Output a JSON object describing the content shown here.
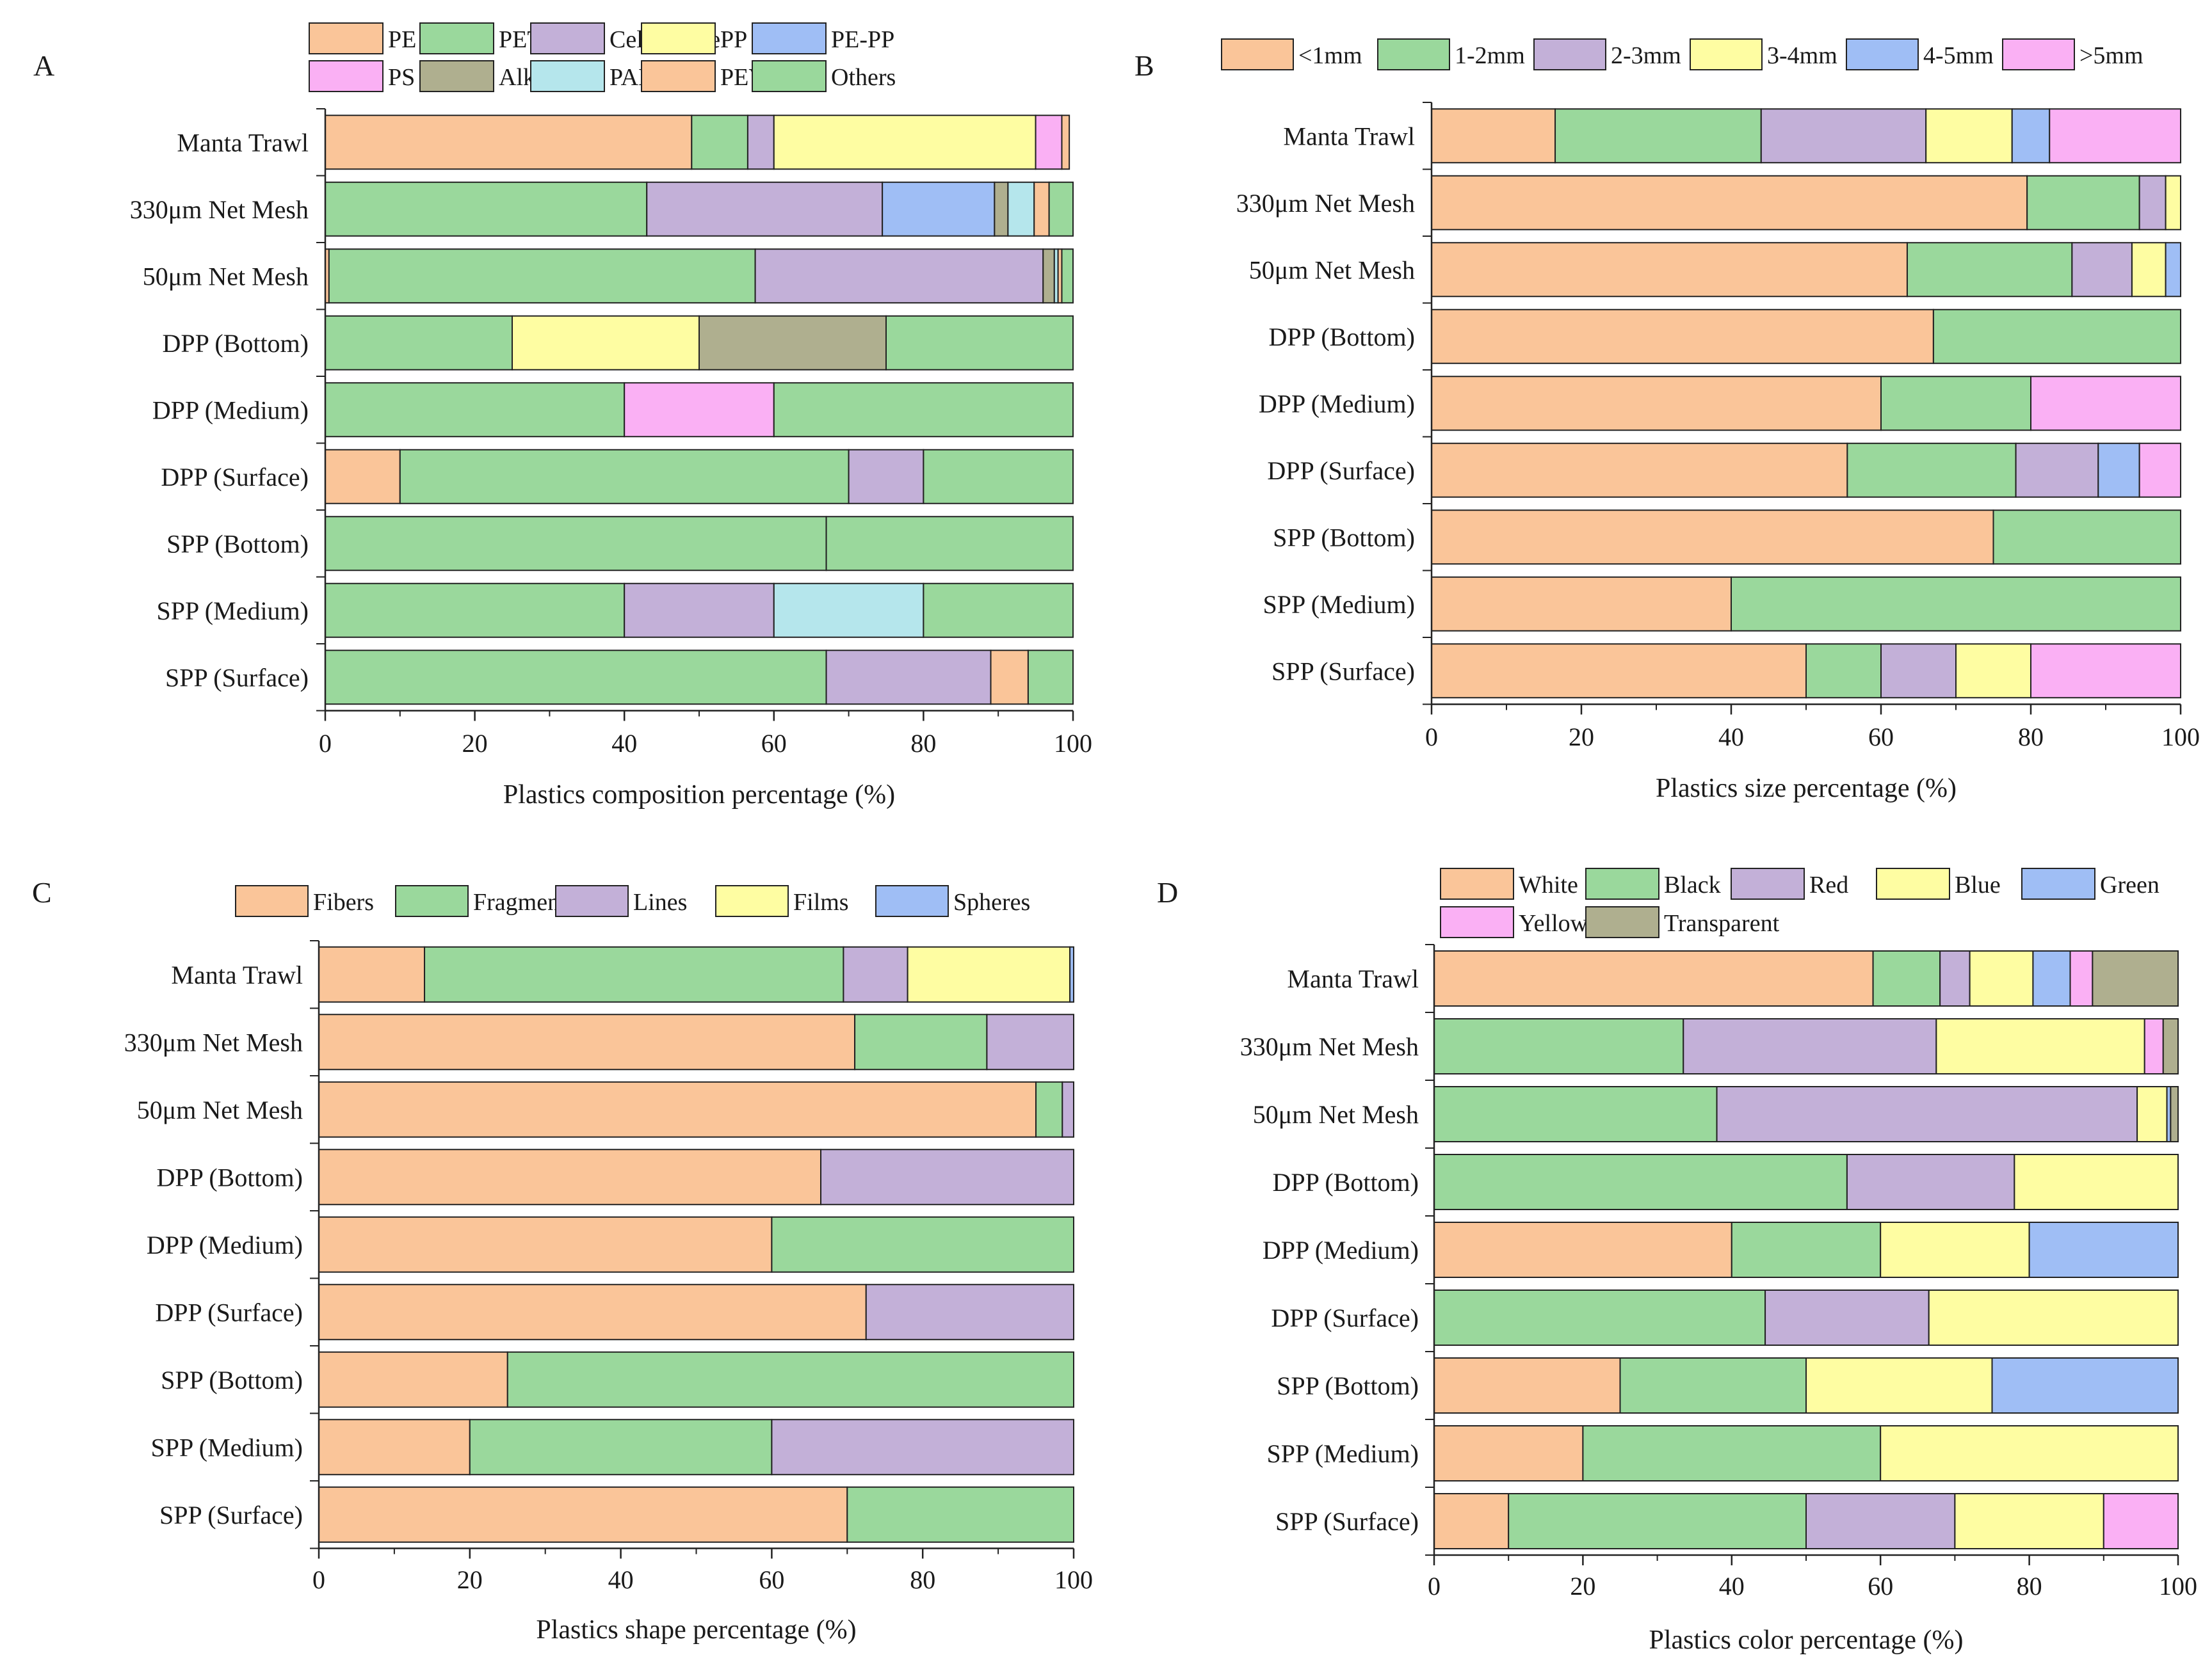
{
  "figure": {
    "panel_letters": [
      "A",
      "B",
      "C",
      "D"
    ]
  },
  "colors": {
    "orange": "#FAC599",
    "green": "#9AD89C",
    "purple": "#C3B0D8",
    "yellow": "#FEFDA2",
    "blue": "#9FBEF5",
    "pink": "#FAB0F4",
    "olive": "#AFAF8F",
    "cyan": "#B5E6EC"
  },
  "chart_data": [
    {
      "type": "bar",
      "orientation": "horizontal",
      "stacked": true,
      "panel": "A",
      "xlabel": "Plastics composition percentage (%)",
      "xlim": [
        0,
        100
      ],
      "xticks": [
        "0",
        "20",
        "40",
        "60",
        "80",
        "100"
      ],
      "categories": [
        "Manta Trawl",
        "330μm Net Mesh",
        "50μm Net Mesh",
        "DPP (Bottom)",
        "DPP (Medium)",
        "DPP (Surface)",
        "SPP (Bottom)",
        "SPP (Medium)",
        "SPP (Surface)"
      ],
      "legend_rows": [
        5,
        5
      ],
      "series": [
        {
          "name": "PE",
          "color": "orange",
          "values": [
            49,
            0,
            0.5,
            0,
            0,
            10,
            0,
            0,
            0
          ]
        },
        {
          "name": "PET",
          "color": "green",
          "values": [
            7.5,
            43,
            57,
            25,
            40,
            60,
            67,
            40,
            67
          ]
        },
        {
          "name": "Cellophane",
          "color": "purple",
          "values": [
            3.5,
            31.5,
            38.5,
            0,
            0,
            10,
            0,
            20,
            22
          ]
        },
        {
          "name": "PP",
          "color": "yellow",
          "values": [
            35,
            0,
            0,
            25,
            0,
            0,
            0,
            0,
            0
          ]
        },
        {
          "name": "PE-PP",
          "color": "blue",
          "values": [
            0,
            15,
            0,
            0,
            0,
            0,
            0,
            0,
            0
          ]
        },
        {
          "name": "PS",
          "color": "pink",
          "values": [
            3.5,
            0,
            0,
            0,
            20,
            0,
            0,
            0,
            0
          ]
        },
        {
          "name": "Alkyd",
          "color": "olive",
          "values": [
            0,
            1.8,
            1.5,
            25,
            0,
            0,
            0,
            0,
            0
          ]
        },
        {
          "name": "PAN-AA",
          "color": "cyan",
          "values": [
            0,
            3.5,
            0.5,
            0,
            0,
            0,
            0,
            20,
            0
          ]
        },
        {
          "name": "PEVA",
          "color": "orange",
          "values": [
            1,
            2,
            0.5,
            0,
            0,
            0,
            0,
            0,
            5
          ]
        },
        {
          "name": "Others",
          "color": "green",
          "values": [
            0,
            3.2,
            1.5,
            25,
            40,
            20,
            33,
            20,
            6
          ]
        }
      ]
    },
    {
      "type": "bar",
      "orientation": "horizontal",
      "stacked": true,
      "panel": "B",
      "xlabel": "Plastics size percentage (%)",
      "xlim": [
        0,
        100
      ],
      "xticks": [
        "0",
        "20",
        "40",
        "60",
        "80",
        "100"
      ],
      "categories": [
        "Manta Trawl",
        "330μm Net Mesh",
        "50μm Net Mesh",
        "DPP (Bottom)",
        "DPP (Medium)",
        "DPP (Surface)",
        "SPP (Bottom)",
        "SPP (Medium)",
        "SPP (Surface)"
      ],
      "legend_rows": [
        6
      ],
      "series": [
        {
          "name": "<1mm",
          "color": "orange",
          "values": [
            16.5,
            79.5,
            63.5,
            67,
            60,
            55.5,
            75,
            40,
            50
          ]
        },
        {
          "name": "1-2mm",
          "color": "green",
          "values": [
            27.5,
            15,
            22,
            33,
            20,
            22.5,
            25,
            60,
            10
          ]
        },
        {
          "name": "2-3mm",
          "color": "purple",
          "values": [
            22,
            3.5,
            8,
            0,
            0,
            11,
            0,
            0,
            10
          ]
        },
        {
          "name": "3-4mm",
          "color": "yellow",
          "values": [
            11.5,
            2,
            4.5,
            0,
            0,
            0,
            0,
            0,
            10
          ]
        },
        {
          "name": "4-5mm",
          "color": "blue",
          "values": [
            5,
            0,
            2,
            0,
            0,
            5.5,
            0,
            0,
            0
          ]
        },
        {
          "name": ">5mm",
          "color": "pink",
          "values": [
            17.5,
            0,
            0,
            0,
            20,
            5.5,
            0,
            0,
            20
          ]
        }
      ]
    },
    {
      "type": "bar",
      "orientation": "horizontal",
      "stacked": true,
      "panel": "C",
      "xlabel": "Plastics shape percentage (%)",
      "xlim": [
        0,
        100
      ],
      "xticks": [
        "0",
        "20",
        "40",
        "60",
        "80",
        "100"
      ],
      "categories": [
        "Manta Trawl",
        "330μm Net Mesh",
        "50μm Net Mesh",
        "DPP (Bottom)",
        "DPP (Medium)",
        "DPP (Surface)",
        "SPP (Bottom)",
        "SPP (Medium)",
        "SPP (Surface)"
      ],
      "legend_rows": [
        5
      ],
      "series": [
        {
          "name": "Fibers",
          "color": "orange",
          "values": [
            14,
            71,
            95,
            66.5,
            60,
            72.5,
            25,
            20,
            70
          ]
        },
        {
          "name": "Fragments",
          "color": "green",
          "values": [
            55.5,
            17.5,
            3.5,
            0,
            40,
            0,
            75,
            40,
            30
          ]
        },
        {
          "name": "Lines",
          "color": "purple",
          "values": [
            8.5,
            11.5,
            1.5,
            33.5,
            0,
            27.5,
            0,
            40,
            0
          ]
        },
        {
          "name": "Films",
          "color": "yellow",
          "values": [
            21.5,
            0,
            0,
            0,
            0,
            0,
            0,
            0,
            0
          ]
        },
        {
          "name": "Spheres",
          "color": "blue",
          "values": [
            0.5,
            0,
            0,
            0,
            0,
            0,
            0,
            0,
            0
          ]
        }
      ]
    },
    {
      "type": "bar",
      "orientation": "horizontal",
      "stacked": true,
      "panel": "D",
      "xlabel": "Plastics color percentage (%)",
      "xlim": [
        0,
        100
      ],
      "xticks": [
        "0",
        "20",
        "40",
        "60",
        "80",
        "100"
      ],
      "categories": [
        "Manta Trawl",
        "330μm Net Mesh",
        "50μm Net Mesh",
        "DPP (Bottom)",
        "DPP (Medium)",
        "DPP (Surface)",
        "SPP (Bottom)",
        "SPP (Medium)",
        "SPP (Surface)"
      ],
      "legend_rows": [
        5,
        2
      ],
      "series": [
        {
          "name": "White",
          "color": "orange",
          "values": [
            59,
            0,
            0,
            0,
            40,
            0,
            25,
            20,
            10
          ]
        },
        {
          "name": "Black",
          "color": "green",
          "values": [
            9,
            33.5,
            38,
            55.5,
            20,
            44.5,
            25,
            40,
            40
          ]
        },
        {
          "name": "Red",
          "color": "purple",
          "values": [
            4,
            34,
            56.5,
            22.5,
            0,
            22,
            0,
            0,
            20
          ]
        },
        {
          "name": "Blue",
          "color": "yellow",
          "values": [
            8.5,
            28,
            4,
            22,
            20,
            33.5,
            25,
            40,
            20
          ]
        },
        {
          "name": "Green",
          "color": "blue",
          "values": [
            5,
            0,
            0.5,
            0,
            20,
            0,
            25,
            0,
            0
          ]
        },
        {
          "name": "Yellow",
          "color": "pink",
          "values": [
            3,
            2.5,
            0,
            0,
            0,
            0,
            0,
            0,
            10
          ]
        },
        {
          "name": "Transparent",
          "color": "olive",
          "values": [
            11.5,
            2,
            1,
            0,
            0,
            0,
            0,
            0,
            0
          ]
        }
      ]
    }
  ]
}
